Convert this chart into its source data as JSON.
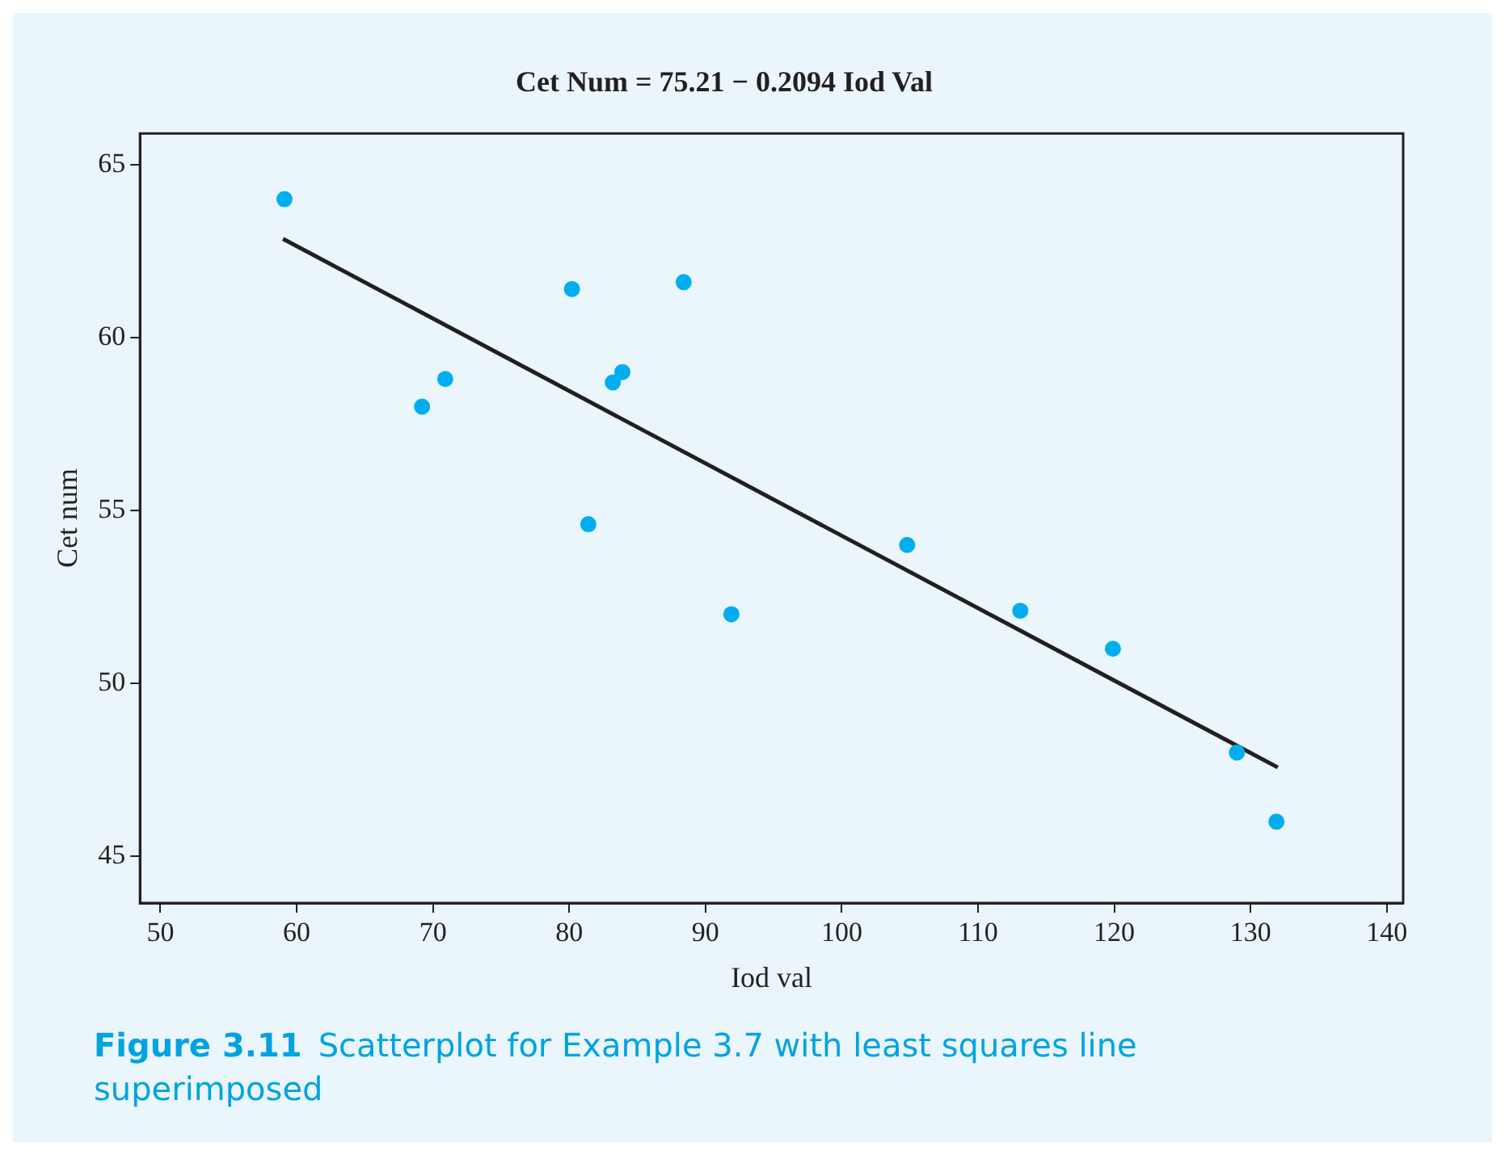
{
  "chart_data": {
    "type": "scatter",
    "title": "Cet Num = 75.21 − 0.2094 Iod Val",
    "xlabel": "Iod val",
    "ylabel": "Cet num",
    "series": [
      {
        "color": "#00aeef",
        "marker": "circle",
        "x": [
          59.1,
          69.2,
          70.9,
          80.2,
          83.2,
          83.9,
          81.4,
          88.4,
          91.9,
          104.8,
          113.1,
          119.9,
          129.0,
          131.9
        ],
        "values": [
          64.0,
          58.0,
          58.8,
          61.4,
          58.7,
          59.0,
          54.6,
          61.6,
          52.0,
          54.0,
          52.1,
          51.0,
          48.0,
          46.0
        ]
      },
      {
        "type": "line",
        "marker": "none",
        "color": "#231f20",
        "x": [
          59,
          132
        ],
        "values": [
          62.85,
          47.57
        ]
      }
    ],
    "xlim": [
      48.5,
      141.2
    ],
    "ylim": [
      43.65,
      65.9
    ],
    "xticks": [
      50,
      60,
      70,
      80,
      90,
      100,
      110,
      120,
      130,
      140
    ],
    "yticks": [
      45,
      50,
      55,
      60,
      65
    ],
    "grid": false,
    "annotations": [
      "Figure 3.11",
      "Scatterplot for Example 3.7 with least squares line superimposed"
    ]
  }
}
